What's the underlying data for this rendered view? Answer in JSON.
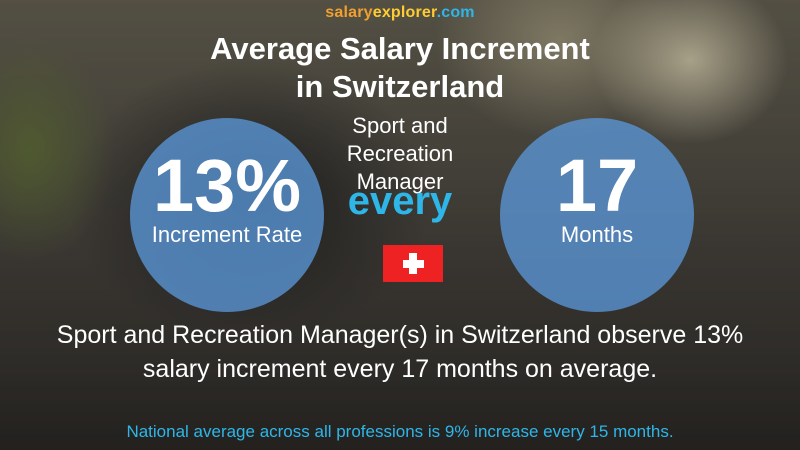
{
  "brand": {
    "part1": "salary",
    "part2": "explorer",
    "part3": ".com"
  },
  "title": {
    "line1": "Average Salary Increment",
    "line2": "in Switzerland"
  },
  "job_title": {
    "line1": "Sport and",
    "line2": "Recreation",
    "line3": "Manager"
  },
  "increment": {
    "value": "13%",
    "label": "Increment Rate"
  },
  "frequency": {
    "value": "17",
    "label": "Months"
  },
  "connector": "every",
  "summary": {
    "line1": "Sport and Recreation Manager(s) in Switzerland observe 13%",
    "line2": "salary increment every 17 months on average."
  },
  "national_note": "National average across all professions is 9% increase every 15 months.",
  "colors": {
    "circle": "#5a96d7",
    "accent": "#2fb6e8",
    "flag_red": "#ee2222"
  },
  "icons": {
    "flag": "switzerland-flag-icon"
  }
}
